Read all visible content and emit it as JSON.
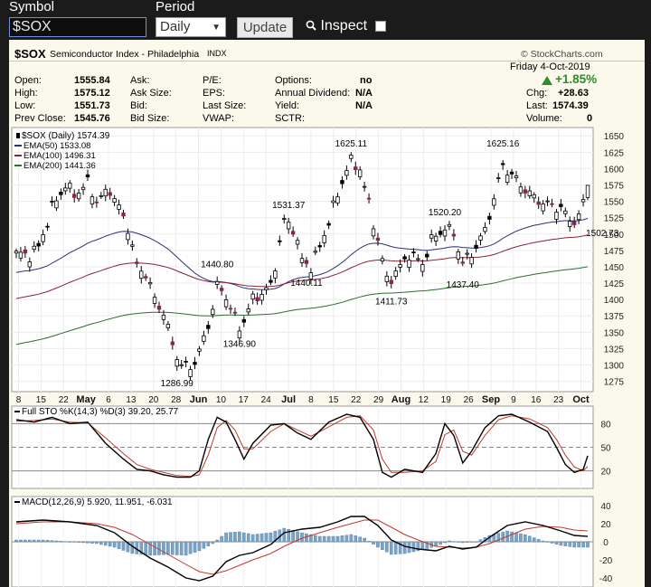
{
  "toolbar": {
    "symbol_label": "Symbol",
    "symbol_value": "$SOX",
    "period_label": "Period",
    "period_value": "Daily",
    "update_label": "Update",
    "inspect_label": "Inspect",
    "inspect_checked": false
  },
  "header": {
    "symbol": "$SOX",
    "name": "Semiconductor Index - Philadelphia",
    "exchange": "INDX",
    "source": "© StockCharts.com",
    "date": "Friday  4-Oct-2019",
    "change_pct": "+1.85%",
    "chg_label": "Chg:",
    "chg_value": "+28.63",
    "last_label": "Last:",
    "last_value": "1574.39",
    "volume_label": "Volume:",
    "volume_value": "0"
  },
  "quote": {
    "open_label": "Open:",
    "open": "1555.84",
    "high_label": "High:",
    "high": "1575.12",
    "low_label": "Low:",
    "low": "1551.73",
    "prevclose_label": "Prev Close:",
    "prevclose": "1545.76",
    "ask_label": "Ask:",
    "asksize_label": "Ask Size:",
    "bid_label": "Bid:",
    "bidsize_label": "Bid Size:",
    "pe_label": "P/E:",
    "eps_label": "EPS:",
    "lastsize_label": "Last Size:",
    "vwap_label": "VWAP:",
    "options_label": "Options:",
    "options": "no",
    "dividend_label": "Annual Dividend:",
    "dividend": "N/A",
    "yield_label": "Yield:",
    "yield": "N/A",
    "sctr_label": "SCTR:"
  },
  "chart_data": {
    "type": "candlestick",
    "legend": [
      {
        "label": "$SOX (Daily) 1574.39",
        "color": "#000000"
      },
      {
        "label": "EMA(50) 1533.08",
        "color": "#2b2f7a"
      },
      {
        "label": "EMA(100) 1496.31",
        "color": "#8b2233"
      },
      {
        "label": "EMA(200) 1441.36",
        "color": "#2c6e2c"
      }
    ],
    "y_ticks": [
      1650,
      1625,
      1600,
      1575,
      1550,
      1525,
      1500,
      1475,
      1450,
      1425,
      1400,
      1375,
      1350,
      1325,
      1300,
      1275
    ],
    "ylim": [
      1262,
      1660
    ],
    "x_labels": [
      "8",
      "15",
      "22",
      "May",
      "6",
      "13",
      "20",
      "28",
      "Jun",
      "10",
      "17",
      "24",
      "Jul",
      "8",
      "15",
      "22",
      "29",
      "Aug",
      "12",
      "19",
      "26",
      "Sep",
      "9",
      "16",
      "23",
      "Oct"
    ],
    "annotations": [
      {
        "text": "1625.11",
        "i": 75,
        "v": 1625.11,
        "pos": "above"
      },
      {
        "text": "1625.16",
        "i": 109,
        "v": 1625.16,
        "pos": "above"
      },
      {
        "text": "1531.37",
        "i": 61,
        "v": 1531.37,
        "pos": "above"
      },
      {
        "text": "1520.20",
        "i": 96,
        "v": 1520.2,
        "pos": "above"
      },
      {
        "text": "1440.80",
        "i": 45,
        "v": 1440.8,
        "pos": "above"
      },
      {
        "text": "1440.11",
        "i": 65,
        "v": 1440.11,
        "pos": "below"
      },
      {
        "text": "1411.73",
        "i": 84,
        "v": 1411.73,
        "pos": "below"
      },
      {
        "text": "1437.40",
        "i": 100,
        "v": 1437.4,
        "pos": "below"
      },
      {
        "text": "1502.73",
        "i": 126,
        "v": 1502.73,
        "pos": "right"
      },
      {
        "text": "1346.90",
        "i": 50,
        "v": 1346.9,
        "pos": "below"
      },
      {
        "text": "1286.99",
        "i": 36,
        "v": 1286.99,
        "pos": "below"
      }
    ],
    "candles": {
      "anchors": [
        [
          0,
          1470
        ],
        [
          3,
          1468
        ],
        [
          5,
          1480
        ],
        [
          8,
          1540
        ],
        [
          11,
          1575
        ],
        [
          13,
          1560
        ],
        [
          16,
          1578
        ],
        [
          18,
          1550
        ],
        [
          21,
          1568
        ],
        [
          23,
          1540
        ],
        [
          25,
          1510
        ],
        [
          27,
          1450
        ],
        [
          29,
          1440
        ],
        [
          31,
          1400
        ],
        [
          33,
          1380
        ],
        [
          35,
          1330
        ],
        [
          37,
          1300
        ],
        [
          39,
          1295
        ],
        [
          41,
          1320
        ],
        [
          43,
          1360
        ],
        [
          45,
          1420
        ],
        [
          47,
          1405
        ],
        [
          50,
          1355
        ],
        [
          53,
          1400
        ],
        [
          57,
          1420
        ],
        [
          60,
          1520
        ],
        [
          62,
          1510
        ],
        [
          64,
          1460
        ],
        [
          66,
          1450
        ],
        [
          68,
          1480
        ],
        [
          70,
          1520
        ],
        [
          72,
          1560
        ],
        [
          74,
          1600
        ],
        [
          75,
          1610
        ],
        [
          77,
          1600
        ],
        [
          79,
          1545
        ],
        [
          81,
          1490
        ],
        [
          83,
          1430
        ],
        [
          85,
          1440
        ],
        [
          88,
          1470
        ],
        [
          91,
          1455
        ],
        [
          93,
          1490
        ],
        [
          96,
          1510
        ],
        [
          98,
          1500
        ],
        [
          100,
          1455
        ],
        [
          102,
          1470
        ],
        [
          105,
          1505
        ],
        [
          107,
          1555
        ],
        [
          109,
          1605
        ],
        [
          111,
          1590
        ],
        [
          113,
          1575
        ],
        [
          116,
          1555
        ],
        [
          119,
          1545
        ],
        [
          122,
          1540
        ],
        [
          124,
          1520
        ],
        [
          126,
          1525
        ],
        [
          128,
          1574.39
        ]
      ],
      "count": 129,
      "last": {
        "open": 1555.84,
        "high": 1575.12,
        "low": 1551.73,
        "close": 1574.39
      }
    },
    "sto": {
      "label": "Full STO %K(14,3) %D(3) 39.20, 25.77",
      "k": 39.2,
      "d": 25.77,
      "y_ticks": [
        80,
        50,
        20
      ],
      "ylim": [
        0,
        100
      ],
      "k_points": [
        [
          0,
          85
        ],
        [
          4,
          82
        ],
        [
          8,
          88
        ],
        [
          12,
          80
        ],
        [
          16,
          82
        ],
        [
          20,
          55
        ],
        [
          24,
          35
        ],
        [
          27,
          22
        ],
        [
          30,
          20
        ],
        [
          33,
          15
        ],
        [
          36,
          12
        ],
        [
          39,
          12
        ],
        [
          41,
          20
        ],
        [
          43,
          60
        ],
        [
          45,
          88
        ],
        [
          47,
          82
        ],
        [
          49,
          60
        ],
        [
          51,
          35
        ],
        [
          53,
          55
        ],
        [
          57,
          78
        ],
        [
          60,
          80
        ],
        [
          63,
          68
        ],
        [
          66,
          60
        ],
        [
          70,
          82
        ],
        [
          74,
          92
        ],
        [
          77,
          88
        ],
        [
          80,
          60
        ],
        [
          82,
          18
        ],
        [
          84,
          12
        ],
        [
          87,
          22
        ],
        [
          91,
          18
        ],
        [
          94,
          42
        ],
        [
          96,
          80
        ],
        [
          98,
          65
        ],
        [
          100,
          30
        ],
        [
          102,
          45
        ],
        [
          105,
          75
        ],
        [
          108,
          90
        ],
        [
          111,
          92
        ],
        [
          115,
          82
        ],
        [
          119,
          70
        ],
        [
          121,
          50
        ],
        [
          123,
          28
        ],
        [
          125,
          18
        ],
        [
          127,
          22
        ],
        [
          128,
          39.2
        ]
      ],
      "d_points": [
        [
          0,
          83
        ],
        [
          4,
          84
        ],
        [
          8,
          86
        ],
        [
          12,
          82
        ],
        [
          16,
          81
        ],
        [
          20,
          62
        ],
        [
          24,
          42
        ],
        [
          27,
          28
        ],
        [
          30,
          22
        ],
        [
          33,
          18
        ],
        [
          36,
          14
        ],
        [
          39,
          13
        ],
        [
          41,
          15
        ],
        [
          43,
          40
        ],
        [
          45,
          75
        ],
        [
          47,
          84
        ],
        [
          49,
          72
        ],
        [
          51,
          48
        ],
        [
          53,
          48
        ],
        [
          57,
          70
        ],
        [
          60,
          80
        ],
        [
          63,
          72
        ],
        [
          66,
          64
        ],
        [
          70,
          76
        ],
        [
          74,
          88
        ],
        [
          77,
          90
        ],
        [
          80,
          72
        ],
        [
          82,
          35
        ],
        [
          84,
          18
        ],
        [
          87,
          18
        ],
        [
          91,
          20
        ],
        [
          94,
          32
        ],
        [
          96,
          66
        ],
        [
          98,
          72
        ],
        [
          100,
          45
        ],
        [
          102,
          40
        ],
        [
          105,
          65
        ],
        [
          108,
          85
        ],
        [
          111,
          90
        ],
        [
          115,
          86
        ],
        [
          119,
          75
        ],
        [
          121,
          60
        ],
        [
          123,
          40
        ],
        [
          125,
          25
        ],
        [
          127,
          20
        ],
        [
          128,
          25.77
        ]
      ]
    },
    "macd": {
      "label": "MACD(12,26,9) 5.920, 11.951, -6.031",
      "macd": 5.92,
      "signal": 11.951,
      "hist": -6.031,
      "y_ticks": [
        40,
        20,
        0,
        -20,
        -40
      ],
      "ylim": [
        -48,
        48
      ],
      "macd_points": [
        [
          0,
          22
        ],
        [
          6,
          24
        ],
        [
          12,
          22
        ],
        [
          18,
          18
        ],
        [
          22,
          10
        ],
        [
          26,
          -5
        ],
        [
          30,
          -18
        ],
        [
          34,
          -28
        ],
        [
          38,
          -40
        ],
        [
          41,
          -43
        ],
        [
          44,
          -38
        ],
        [
          47,
          -22
        ],
        [
          50,
          -15
        ],
        [
          53,
          -12
        ],
        [
          57,
          -3
        ],
        [
          60,
          10
        ],
        [
          64,
          14
        ],
        [
          68,
          16
        ],
        [
          72,
          22
        ],
        [
          75,
          28
        ],
        [
          78,
          28
        ],
        [
          81,
          18
        ],
        [
          84,
          2
        ],
        [
          87,
          -5
        ],
        [
          90,
          -8
        ],
        [
          94,
          -10
        ],
        [
          97,
          -5
        ],
        [
          100,
          -8
        ],
        [
          103,
          -6
        ],
        [
          106,
          5
        ],
        [
          110,
          18
        ],
        [
          114,
          22
        ],
        [
          118,
          18
        ],
        [
          122,
          12
        ],
        [
          125,
          7
        ],
        [
          128,
          5.92
        ]
      ],
      "signal_points": [
        [
          0,
          20
        ],
        [
          6,
          22
        ],
        [
          12,
          22
        ],
        [
          18,
          20
        ],
        [
          22,
          16
        ],
        [
          26,
          8
        ],
        [
          30,
          -3
        ],
        [
          34,
          -14
        ],
        [
          38,
          -25
        ],
        [
          41,
          -33
        ],
        [
          44,
          -36
        ],
        [
          47,
          -32
        ],
        [
          50,
          -26
        ],
        [
          53,
          -20
        ],
        [
          57,
          -13
        ],
        [
          60,
          -5
        ],
        [
          64,
          4
        ],
        [
          68,
          10
        ],
        [
          72,
          16
        ],
        [
          75,
          20
        ],
        [
          78,
          24
        ],
        [
          81,
          24
        ],
        [
          84,
          16
        ],
        [
          87,
          8
        ],
        [
          90,
          2
        ],
        [
          94,
          -5
        ],
        [
          97,
          -6
        ],
        [
          100,
          -7
        ],
        [
          103,
          -6
        ],
        [
          106,
          -2
        ],
        [
          110,
          6
        ],
        [
          114,
          14
        ],
        [
          118,
          17
        ],
        [
          122,
          16
        ],
        [
          125,
          13
        ],
        [
          128,
          11.951
        ]
      ]
    }
  }
}
